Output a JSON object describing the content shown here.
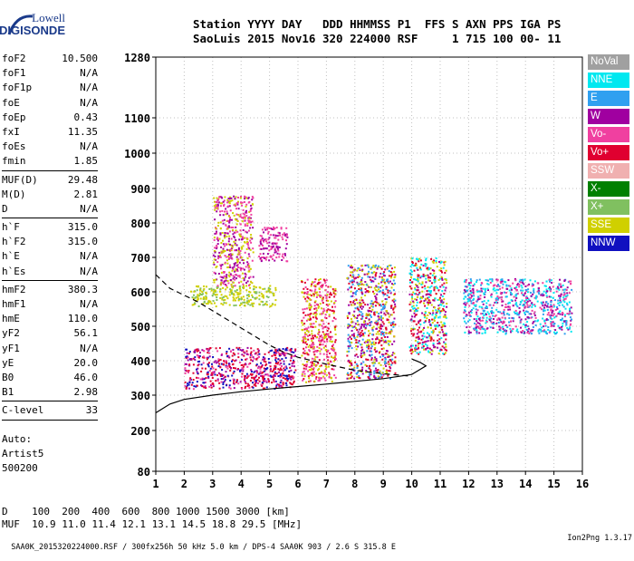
{
  "logo": {
    "line1": "Lowell",
    "line2": "DIGISONDE"
  },
  "header": {
    "line1": "Station YYYY DAY   DDD HHMMSS P1  FFS S AXN PPS IGA PS",
    "line2": "SaoLuis 2015 Nov16 320 224000 RSF     1 715 100 00- 11"
  },
  "params": {
    "group1": [
      {
        "k": "foF2",
        "v": "10.500"
      },
      {
        "k": "foF1",
        "v": "N/A"
      },
      {
        "k": "foF1p",
        "v": "N/A"
      },
      {
        "k": "foE",
        "v": "N/A"
      },
      {
        "k": "foEp",
        "v": "0.43"
      },
      {
        "k": "fxI",
        "v": "11.35"
      },
      {
        "k": "foEs",
        "v": "N/A"
      },
      {
        "k": "fmin",
        "v": "1.85"
      }
    ],
    "group2": [
      {
        "k": "MUF(D)",
        "v": "29.48"
      },
      {
        "k": "M(D)",
        "v": "2.81"
      },
      {
        "k": "D",
        "v": "N/A"
      }
    ],
    "group3": [
      {
        "k": "h`F",
        "v": "315.0"
      },
      {
        "k": "h`F2",
        "v": "315.0"
      },
      {
        "k": "h`E",
        "v": "N/A"
      },
      {
        "k": "h`Es",
        "v": "N/A"
      }
    ],
    "group4": [
      {
        "k": "hmF2",
        "v": "380.3"
      },
      {
        "k": "hmF1",
        "v": "N/A"
      },
      {
        "k": "hmE",
        "v": "110.0"
      },
      {
        "k": "yF2",
        "v": "56.1"
      },
      {
        "k": "yF1",
        "v": "N/A"
      },
      {
        "k": "yE",
        "v": "20.0"
      },
      {
        "k": "B0",
        "v": "46.0"
      },
      {
        "k": "B1",
        "v": "2.98"
      }
    ],
    "group5": [
      {
        "k": "C-level",
        "v": "33"
      }
    ]
  },
  "auto": {
    "line1": "Auto:",
    "line2": "Artist5",
    "line3": "500200"
  },
  "legend": [
    {
      "label": "NoVal",
      "color": "#a0a0a0"
    },
    {
      "label": "NNE",
      "color": "#00e8f0"
    },
    {
      "label": "E",
      "color": "#30a0f0"
    },
    {
      "label": "W",
      "color": "#a000a0"
    },
    {
      "label": "Vo-",
      "color": "#f040a0"
    },
    {
      "label": "Vo+",
      "color": "#e00030"
    },
    {
      "label": "SSW",
      "color": "#f0b0b0"
    },
    {
      "label": "X-",
      "color": "#008000"
    },
    {
      "label": "X+",
      "color": "#80c060"
    },
    {
      "label": "SSE",
      "color": "#d0d000"
    },
    {
      "label": "NNW",
      "color": "#1010c0"
    }
  ],
  "chart_data": {
    "type": "scatter",
    "y_tick_labels": [
      "1280",
      "1100",
      "1000",
      "900",
      "800",
      "700",
      "600",
      "500",
      "400",
      "300",
      "200",
      "80"
    ],
    "x_tick_labels": [
      "1",
      "2",
      "3",
      "4",
      "5",
      "6",
      "7",
      "8",
      "9",
      "10",
      "11",
      "12",
      "13",
      "14",
      "15",
      "16"
    ],
    "y_ticks": [
      1280,
      1100,
      1000,
      900,
      800,
      700,
      600,
      500,
      400,
      300,
      200,
      80
    ],
    "x_ticks": [
      1,
      2,
      3,
      4,
      5,
      6,
      7,
      8,
      9,
      10,
      11,
      12,
      13,
      14,
      15,
      16
    ],
    "xlim": [
      1,
      16
    ],
    "grid": true,
    "echo_clusters": [
      {
        "x": [
          2.0,
          5.9
        ],
        "y": [
          320,
          440
        ],
        "colors": [
          "#e00030",
          "#f040a0",
          "#a000a0",
          "#1010c0",
          "#e00030"
        ]
      },
      {
        "x": [
          2.2,
          5.2
        ],
        "y": [
          560,
          620
        ],
        "colors": [
          "#d0d000",
          "#d0d000",
          "#80c060"
        ]
      },
      {
        "x": [
          3.0,
          4.4
        ],
        "y": [
          620,
          880
        ],
        "colors": [
          "#a000a0",
          "#d0d000",
          "#f040a0"
        ]
      },
      {
        "x": [
          4.6,
          5.6
        ],
        "y": [
          690,
          790
        ],
        "colors": [
          "#a000a0",
          "#f040a0"
        ]
      },
      {
        "x": [
          6.1,
          7.3
        ],
        "y": [
          340,
          640
        ],
        "colors": [
          "#e00030",
          "#d0d000",
          "#f040a0"
        ]
      },
      {
        "x": [
          7.7,
          9.4
        ],
        "y": [
          350,
          680
        ],
        "colors": [
          "#e00030",
          "#d0d000",
          "#a000a0",
          "#30a0f0"
        ]
      },
      {
        "x": [
          9.9,
          11.2
        ],
        "y": [
          420,
          700
        ],
        "colors": [
          "#d0d000",
          "#e00030",
          "#a000a0",
          "#00e8f0"
        ]
      },
      {
        "x": [
          11.8,
          15.6
        ],
        "y": [
          480,
          640
        ],
        "colors": [
          "#00e8f0",
          "#30a0f0",
          "#a000a0",
          "#f040a0"
        ]
      }
    ],
    "traces": [
      {
        "name": "solid",
        "x": [
          1.0,
          1.5,
          2.0,
          3.0,
          4.0,
          5.0,
          6.0,
          7.0,
          8.0,
          9.0,
          10.0,
          10.3,
          10.5,
          10.3,
          10.0
        ],
        "y": [
          250,
          275,
          288,
          300,
          310,
          318,
          325,
          332,
          340,
          348,
          360,
          375,
          385,
          395,
          405
        ]
      },
      {
        "name": "dashed",
        "x": [
          1.0,
          1.5,
          2.0,
          2.5,
          3.0,
          3.5,
          4.0,
          4.5,
          5.0,
          5.5,
          6.0,
          6.5,
          7.0,
          8.0,
          9.0,
          10.0
        ],
        "y": [
          650,
          610,
          590,
          570,
          545,
          520,
          495,
          470,
          445,
          425,
          410,
          400,
          390,
          372,
          362,
          355
        ]
      }
    ]
  },
  "muf_table": {
    "line1": "D    100  200  400  600  800 1000 1500 3000 [km]",
    "line2": "MUF  10.9 11.0 11.4 12.1 13.1 14.5 18.8 29.5 [MHz]"
  },
  "footer": {
    "left": "SAA0K_2015320224000.RSF / 300fx256h 50 kHz 5.0 km / DPS-4 SAA0K 903 / 2.6 S 315.8 E",
    "right": "Ion2Png 1.3.17"
  }
}
